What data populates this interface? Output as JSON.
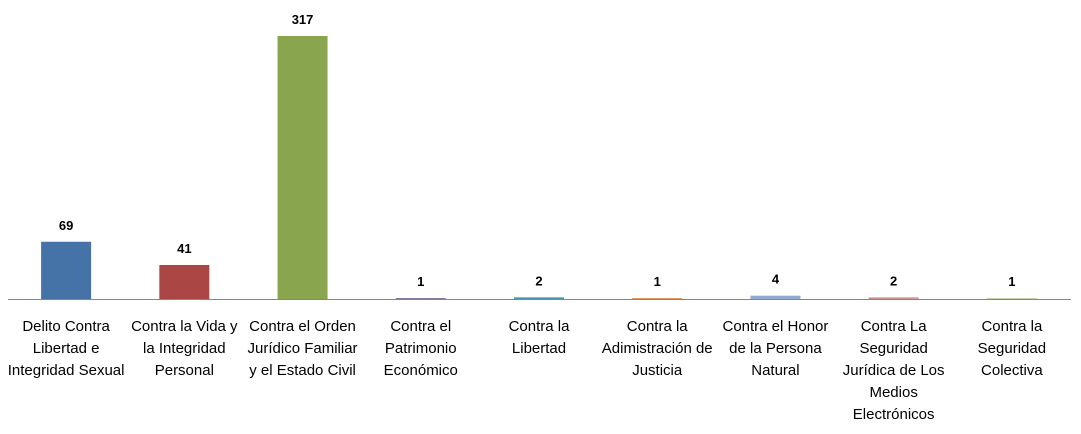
{
  "chart_data": {
    "type": "bar",
    "categories": [
      "Delito Contra Libertad e Integridad Sexual",
      "Contra la Vida y la Integridad Personal",
      "Contra el Orden Jurídico Familiar y el Estado Civil",
      "Contra el Patrimonio Económico",
      "Contra la Libertad",
      "Contra la Adimistración de Justicia",
      "Contra el Honor de la Persona Natural",
      "Contra La Seguridad Jurídica de Los Medios Electrónicos",
      "Contra la Seguridad Colectiva"
    ],
    "values": [
      69,
      41,
      317,
      1,
      2,
      1,
      4,
      2,
      1
    ],
    "colors": [
      "#4572a7",
      "#aa4643",
      "#89a54e",
      "#71588f",
      "#4198af",
      "#db843d",
      "#93a9cf",
      "#d19392",
      "#b9cd96"
    ]
  }
}
